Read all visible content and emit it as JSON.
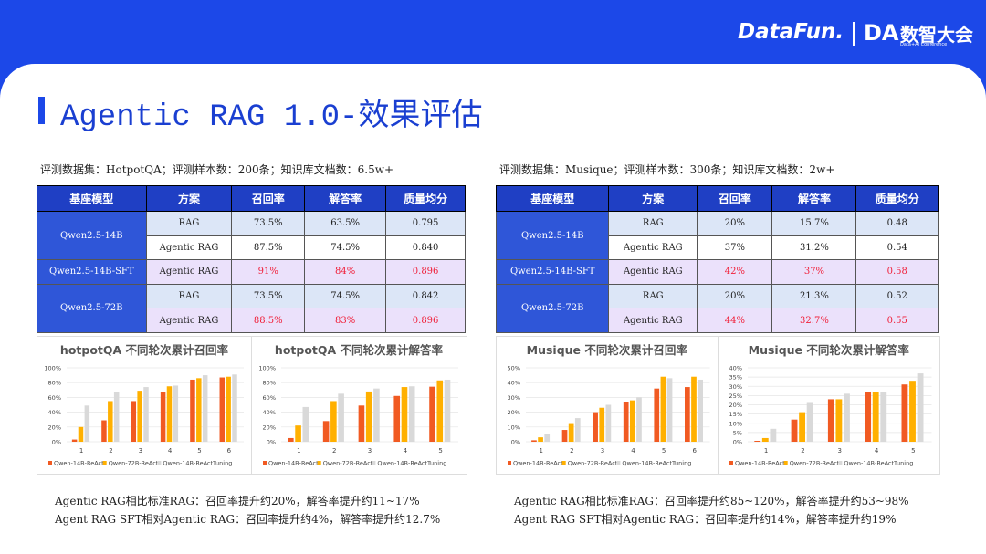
{
  "header": {
    "brand": "DataFun.",
    "da": "DA",
    "conf": "数智大会",
    "conf_sub": "Data+AI Conference"
  },
  "title": "Agentic RAG 1.0-效果评估",
  "panels": [
    {
      "dataset": "评测数据集：HotpotQA；评测样本数：200条；知识库文档数：6.5w+",
      "table": {
        "headers": [
          "基座模型",
          "方案",
          "召回率",
          "解答率",
          "质量均分"
        ],
        "groups": [
          {
            "model": "Qwen2.5-14B",
            "rows": [
              {
                "method": "RAG",
                "values": [
                  "73.5%",
                  "63.5%",
                  "0.795"
                ],
                "highlight": false
              },
              {
                "method": "Agentic RAG",
                "values": [
                  "87.5%",
                  "74.5%",
                  "0.840"
                ],
                "highlight": false
              }
            ]
          },
          {
            "model": "Qwen2.5-14B-SFT",
            "rows": [
              {
                "method": "Agentic RAG",
                "values": [
                  "91%",
                  "84%",
                  "0.896"
                ],
                "highlight": true
              }
            ]
          },
          {
            "model": "Qwen2.5-72B",
            "rows": [
              {
                "method": "RAG",
                "values": [
                  "73.5%",
                  "74.5%",
                  "0.842"
                ],
                "highlight": false
              },
              {
                "method": "Agentic RAG",
                "values": [
                  "88.5%",
                  "83%",
                  "0.896"
                ],
                "highlight": true
              }
            ]
          }
        ]
      },
      "charts": [
        {
          "type": "bar",
          "title": "hotpotQA 不同轮次累计召回率",
          "categories": [
            "1",
            "2",
            "3",
            "4",
            "5",
            "6"
          ],
          "ylim": [
            0,
            100
          ],
          "yticks": [
            {
              "value": 0,
              "label": "0%"
            },
            {
              "value": 20,
              "label": "20%"
            },
            {
              "value": 40,
              "label": "40%"
            },
            {
              "value": 60,
              "label": "60%"
            },
            {
              "value": 80,
              "label": "80%"
            },
            {
              "value": 100,
              "label": "100%"
            }
          ],
          "grid": true,
          "series": [
            {
              "name": "Qwen-14B-ReAct",
              "color": "#f15a22",
              "values": [
                3,
                29,
                55,
                67,
                84,
                87
              ]
            },
            {
              "name": "Qwen-72B-ReAct",
              "color": "#ffb000",
              "values": [
                20,
                55,
                69,
                75,
                86,
                88
              ]
            },
            {
              "name": "Qwen-14B-ReActTuning",
              "color": "#d9d9d9",
              "values": [
                49,
                67,
                74,
                76,
                90,
                91
              ]
            }
          ]
        },
        {
          "type": "bar",
          "title": "hotpotQA 不同轮次累计解答率",
          "categories": [
            "1",
            "2",
            "3",
            "4",
            "5"
          ],
          "ylim": [
            0,
            100
          ],
          "yticks": [
            {
              "value": 0,
              "label": "0%"
            },
            {
              "value": 20,
              "label": "20%"
            },
            {
              "value": 40,
              "label": "40%"
            },
            {
              "value": 60,
              "label": "60%"
            },
            {
              "value": 80,
              "label": "80%"
            },
            {
              "value": 100,
              "label": "100%"
            }
          ],
          "grid": true,
          "series": [
            {
              "name": "Qwen-14B-ReAct",
              "color": "#f15a22",
              "values": [
                5,
                28,
                49,
                62,
                74.5
              ]
            },
            {
              "name": "Qwen-72B-ReAct",
              "color": "#ffb000",
              "values": [
                22,
                55,
                68,
                74,
                83
              ]
            },
            {
              "name": "Qwen-14B-ReActTuning",
              "color": "#d9d9d9",
              "values": [
                47,
                65,
                72,
                75,
                84
              ]
            }
          ]
        }
      ],
      "notes": [
        "Agentic RAG相比标准RAG：召回率提升约20%，解答率提升约11~17%",
        "Agent RAG SFT相对Agentic RAG：召回率提升约4%，解答率提升约12.7%"
      ]
    },
    {
      "dataset": "评测数据集：Musique；评测样本数：300条；知识库文档数：2w+",
      "table": {
        "headers": [
          "基座模型",
          "方案",
          "召回率",
          "解答率",
          "质量均分"
        ],
        "groups": [
          {
            "model": "Qwen2.5-14B",
            "rows": [
              {
                "method": "RAG",
                "values": [
                  "20%",
                  "15.7%",
                  "0.48"
                ],
                "highlight": false
              },
              {
                "method": "Agentic RAG",
                "values": [
                  "37%",
                  "31.2%",
                  "0.54"
                ],
                "highlight": false
              }
            ]
          },
          {
            "model": "Qwen2.5-14B-SFT",
            "rows": [
              {
                "method": "Agentic RAG",
                "values": [
                  "42%",
                  "37%",
                  "0.58"
                ],
                "highlight": true
              }
            ]
          },
          {
            "model": "Qwen2.5-72B",
            "rows": [
              {
                "method": "RAG",
                "values": [
                  "20%",
                  "21.3%",
                  "0.52"
                ],
                "highlight": false
              },
              {
                "method": "Agentic RAG",
                "values": [
                  "44%",
                  "32.7%",
                  "0.55"
                ],
                "highlight": true
              }
            ]
          }
        ]
      },
      "charts": [
        {
          "type": "bar",
          "title": "Musique 不同轮次累计召回率",
          "categories": [
            "1",
            "2",
            "3",
            "4",
            "5",
            "6"
          ],
          "ylim": [
            0,
            50
          ],
          "yticks": [
            {
              "value": 0,
              "label": "0%"
            },
            {
              "value": 10,
              "label": "10%"
            },
            {
              "value": 20,
              "label": "20%"
            },
            {
              "value": 30,
              "label": "30%"
            },
            {
              "value": 40,
              "label": "40%"
            },
            {
              "value": 50,
              "label": "50%"
            }
          ],
          "grid": true,
          "series": [
            {
              "name": "Qwen-14B-ReAct",
              "color": "#f15a22",
              "values": [
                1,
                8,
                20,
                27,
                36,
                37
              ]
            },
            {
              "name": "Qwen-72B-ReAct",
              "color": "#ffb000",
              "values": [
                3,
                12,
                23,
                28,
                44,
                44
              ]
            },
            {
              "name": "Qwen-14B-ReActTuning",
              "color": "#d9d9d9",
              "values": [
                5,
                16,
                25,
                30,
                43,
                42
              ]
            }
          ]
        },
        {
          "type": "bar",
          "title": "Musique 不同轮次累计解答率",
          "categories": [
            "1",
            "2",
            "3",
            "4",
            "5"
          ],
          "ylim": [
            0,
            40
          ],
          "yticks": [
            {
              "value": 0,
              "label": "0%"
            },
            {
              "value": 5,
              "label": "5%"
            },
            {
              "value": 10,
              "label": "10%"
            },
            {
              "value": 15,
              "label": "15%"
            },
            {
              "value": 20,
              "label": "20%"
            },
            {
              "value": 25,
              "label": "25%"
            },
            {
              "value": 30,
              "label": "30%"
            },
            {
              "value": 35,
              "label": "35%"
            },
            {
              "value": 40,
              "label": "40%"
            }
          ],
          "grid": true,
          "series": [
            {
              "name": "Qwen-14B-ReAct",
              "color": "#f15a22",
              "values": [
                0.5,
                12,
                23,
                27,
                31
              ]
            },
            {
              "name": "Qwen-72B-ReAct",
              "color": "#ffb000",
              "values": [
                2,
                16,
                23,
                27,
                33
              ]
            },
            {
              "name": "Qwen-14B-ReActTuning",
              "color": "#d9d9d9",
              "values": [
                7,
                21,
                26,
                27,
                37
              ]
            }
          ]
        }
      ],
      "notes": [
        "Agentic RAG相比标准RAG：召回率提升约85~120%，解答率提升约53~98%",
        "Agent RAG SFT相对Agentic RAG：召回率提升约14%，解答率提升约19%"
      ]
    }
  ]
}
